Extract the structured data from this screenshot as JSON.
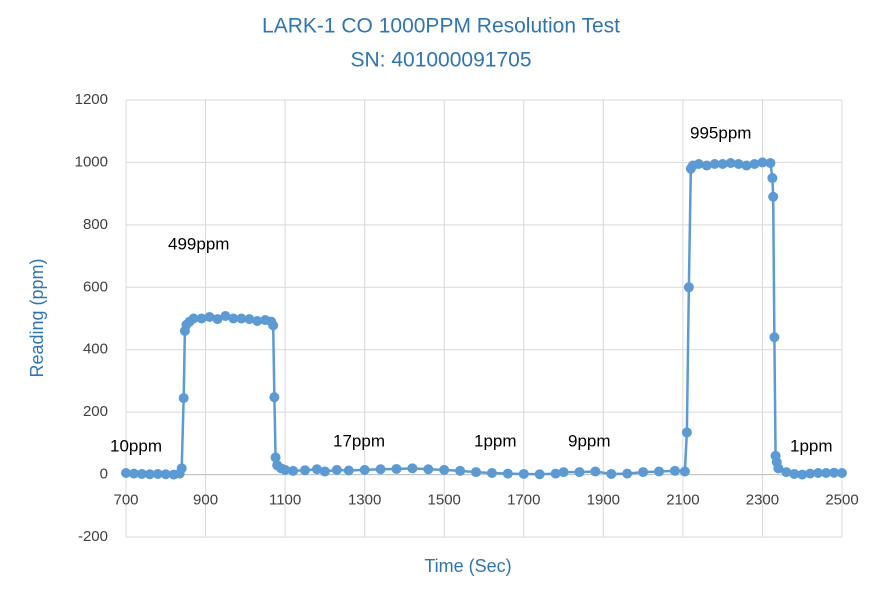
{
  "chart_data": {
    "type": "line",
    "title": "LARK-1 CO 1000PPM Resolution Test",
    "subtitle": "SN: 401000091705",
    "x_label": "Time (Sec)",
    "y_label": "Reading (ppm)",
    "color": "#5b9bd5",
    "grid": true,
    "xlim": [
      700,
      2500
    ],
    "xticks": [
      700,
      900,
      1100,
      1300,
      1500,
      1700,
      1900,
      2100,
      2300,
      2500
    ],
    "ylim": [
      -200,
      1200
    ],
    "yticks": [
      -200,
      0,
      200,
      400,
      600,
      800,
      1000,
      1200
    ],
    "annotations": [
      "10ppm",
      "499ppm",
      "17ppm",
      "1ppm",
      "9ppm",
      "995ppm",
      "1ppm"
    ],
    "x": [
      700,
      720,
      740,
      760,
      780,
      800,
      820,
      835,
      840,
      845,
      848,
      852,
      860,
      870,
      890,
      910,
      930,
      950,
      970,
      990,
      1010,
      1030,
      1050,
      1065,
      1070,
      1073,
      1076,
      1080,
      1090,
      1100,
      1120,
      1150,
      1180,
      1200,
      1230,
      1260,
      1300,
      1340,
      1380,
      1420,
      1460,
      1500,
      1540,
      1580,
      1620,
      1660,
      1700,
      1740,
      1780,
      1800,
      1840,
      1880,
      1920,
      1960,
      2000,
      2040,
      2080,
      2105,
      2110,
      2115,
      2120,
      2125,
      2140,
      2160,
      2180,
      2200,
      2220,
      2240,
      2260,
      2280,
      2300,
      2320,
      2325,
      2327,
      2330,
      2333,
      2336,
      2340,
      2360,
      2380,
      2400,
      2420,
      2440,
      2460,
      2480,
      2500
    ],
    "values": [
      5,
      3,
      2,
      1,
      2,
      1,
      0,
      3,
      20,
      245,
      460,
      480,
      490,
      500,
      500,
      505,
      498,
      508,
      500,
      500,
      498,
      492,
      495,
      490,
      478,
      248,
      55,
      30,
      20,
      15,
      12,
      14,
      17,
      10,
      15,
      13,
      15,
      17,
      18,
      20,
      17,
      15,
      12,
      8,
      5,
      3,
      2,
      1,
      3,
      8,
      8,
      10,
      2,
      3,
      8,
      10,
      12,
      10,
      135,
      600,
      980,
      990,
      995,
      990,
      995,
      995,
      998,
      995,
      990,
      995,
      1000,
      998,
      950,
      890,
      440,
      60,
      40,
      20,
      8,
      2,
      0,
      3,
      5,
      5,
      6,
      5
    ]
  }
}
